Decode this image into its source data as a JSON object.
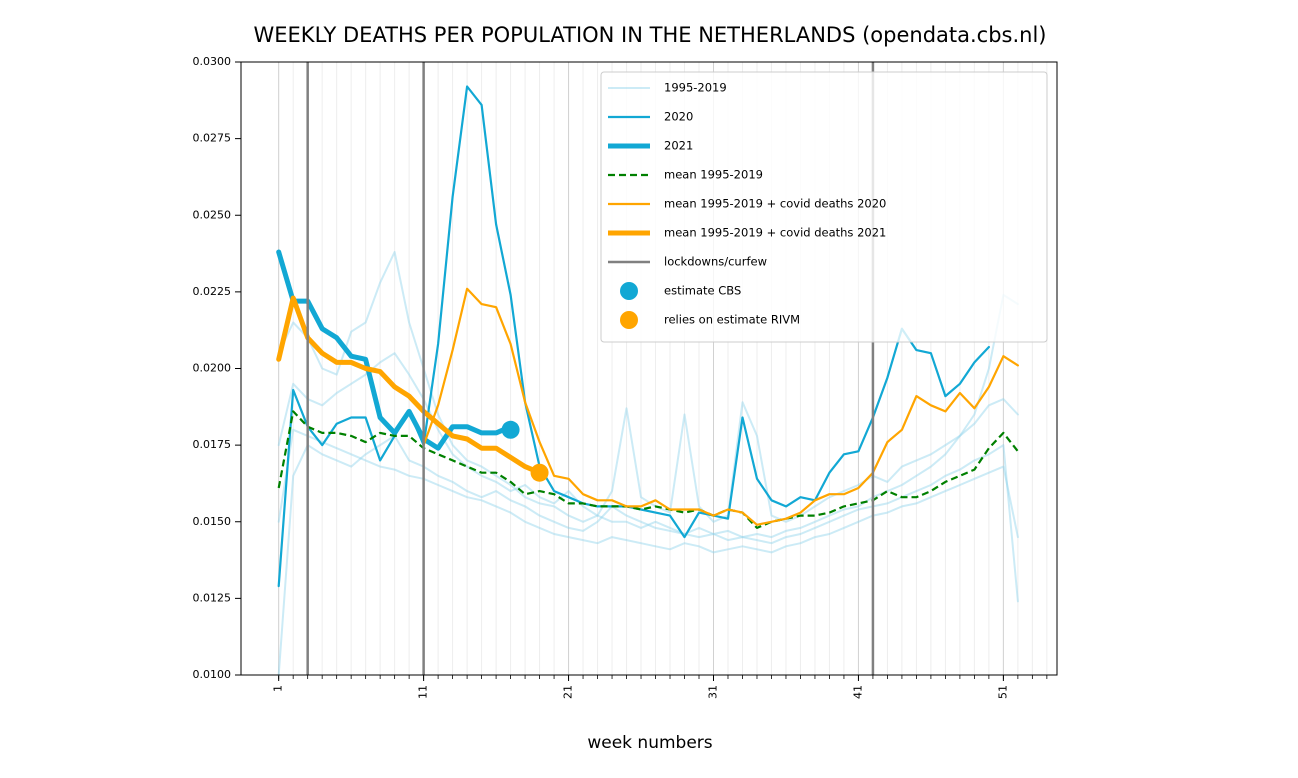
{
  "chart_data": {
    "type": "line",
    "title": "WEEKLY DEATHS PER POPULATION IN THE NETHERLANDS (opendata.cbs.nl)",
    "x_label": "week numbers",
    "x": [
      1,
      2,
      3,
      4,
      5,
      6,
      7,
      8,
      9,
      10,
      11,
      12,
      13,
      14,
      15,
      16,
      17,
      18,
      19,
      20,
      21,
      22,
      23,
      24,
      25,
      26,
      27,
      28,
      29,
      30,
      31,
      32,
      33,
      34,
      35,
      36,
      37,
      38,
      39,
      40,
      41,
      42,
      43,
      44,
      45,
      46,
      47,
      48,
      49,
      50,
      51,
      52
    ],
    "xlim": [
      -1.6,
      54.7
    ],
    "xticks": [
      1,
      11,
      21,
      31,
      41,
      51
    ],
    "xminorticks": [
      1,
      2,
      3,
      4,
      5,
      6,
      7,
      8,
      9,
      10,
      11,
      12,
      13,
      14,
      15,
      16,
      17,
      18,
      19,
      20,
      21,
      22,
      23,
      24,
      25,
      26,
      27,
      28,
      29,
      30,
      31,
      32,
      33,
      34,
      35,
      36,
      37,
      38,
      39,
      40,
      41,
      42,
      43,
      44,
      45,
      46,
      47,
      48,
      49,
      50,
      51,
      52,
      53,
      54
    ],
    "ylim": [
      0.01,
      0.03
    ],
    "yticks": [
      {
        "value": 0.01,
        "label": "0.0100"
      },
      {
        "value": 0.0125,
        "label": "0.0125"
      },
      {
        "value": 0.015,
        "label": "0.0150"
      },
      {
        "value": 0.0175,
        "label": "0.0175"
      },
      {
        "value": 0.02,
        "label": "0.0200"
      },
      {
        "value": 0.0225,
        "label": "0.0225"
      },
      {
        "value": 0.025,
        "label": "0.0250"
      },
      {
        "value": 0.0275,
        "label": "0.0275"
      },
      {
        "value": 0.03,
        "label": "0.0300"
      }
    ],
    "grid": true,
    "legend": "upper right",
    "series": [
      {
        "name": "1995-2019",
        "color": "#8fd3ea",
        "width": 2,
        "opacity": 0.45,
        "lines": [
          [
            0.0205,
            0.0215,
            0.021,
            0.02,
            0.0198,
            0.0212,
            0.0215,
            0.0228,
            0.0238,
            0.0215,
            0.02,
            0.0185,
            0.0175,
            0.017,
            0.0168,
            0.0165,
            0.0162,
            0.0158,
            0.0156,
            0.0155,
            0.0152,
            0.015,
            0.0152,
            0.015,
            0.015,
            0.0148,
            0.015,
            0.0148,
            0.0146,
            0.0148,
            0.0146,
            0.0147,
            0.0145,
            0.0146,
            0.0145,
            0.0147,
            0.0148,
            0.015,
            0.0152,
            0.0154,
            0.0155,
            0.0158,
            0.016,
            0.0162,
            0.0165,
            0.0168,
            0.0172,
            0.0178,
            0.0185,
            0.02,
            0.0224,
            0.0221
          ],
          [
            0.01,
            0.0165,
            0.0175,
            0.0172,
            0.017,
            0.0168,
            0.0172,
            0.0175,
            0.0178,
            0.017,
            0.0168,
            0.0165,
            0.0163,
            0.016,
            0.0158,
            0.016,
            0.0157,
            0.0155,
            0.0152,
            0.015,
            0.0148,
            0.0147,
            0.015,
            0.0155,
            0.0152,
            0.015,
            0.0148,
            0.0147,
            0.0146,
            0.0145,
            0.0146,
            0.0144,
            0.0145,
            0.0144,
            0.0143,
            0.0145,
            0.0146,
            0.0148,
            0.015,
            0.0152,
            0.0154,
            0.0155,
            0.0156,
            0.0158,
            0.016,
            0.0162,
            0.0165,
            0.0167,
            0.017,
            0.0172,
            0.0175,
            0.0124
          ],
          [
            0.0175,
            0.0195,
            0.019,
            0.0188,
            0.0192,
            0.0195,
            0.0198,
            0.0202,
            0.0205,
            0.0198,
            0.019,
            0.018,
            0.0172,
            0.0168,
            0.0165,
            0.0163,
            0.016,
            0.0162,
            0.0158,
            0.0156,
            0.016,
            0.0155,
            0.0152,
            0.016,
            0.0187,
            0.0158,
            0.0155,
            0.0153,
            0.0185,
            0.0155,
            0.015,
            0.0152,
            0.0189,
            0.0178,
            0.0152,
            0.015,
            0.0152,
            0.0155,
            0.0158,
            0.016,
            0.0162,
            0.0165,
            0.0163,
            0.0168,
            0.017,
            0.0172,
            0.0175,
            0.0178,
            0.0182,
            0.0188,
            0.019,
            0.0185
          ],
          [
            0.015,
            0.018,
            0.0178,
            0.0176,
            0.0174,
            0.0172,
            0.017,
            0.0168,
            0.0167,
            0.0165,
            0.0164,
            0.0162,
            0.016,
            0.0158,
            0.0157,
            0.0155,
            0.0153,
            0.015,
            0.0148,
            0.0146,
            0.0145,
            0.0144,
            0.0143,
            0.0145,
            0.0144,
            0.0143,
            0.0142,
            0.0141,
            0.0143,
            0.0142,
            0.014,
            0.0141,
            0.0142,
            0.0141,
            0.014,
            0.0142,
            0.0143,
            0.0145,
            0.0146,
            0.0148,
            0.015,
            0.0152,
            0.0153,
            0.0155,
            0.0156,
            0.0158,
            0.016,
            0.0162,
            0.0164,
            0.0166,
            0.0168,
            0.0145
          ]
        ]
      },
      {
        "name": "2020",
        "color": "#12a8d4",
        "width": 2.2,
        "values": [
          0.0129,
          0.0193,
          0.0181,
          0.0175,
          0.0182,
          0.0184,
          0.0184,
          0.017,
          0.0178,
          0.0186,
          0.0175,
          0.0208,
          0.0256,
          0.0292,
          0.0286,
          0.0247,
          0.0224,
          0.0189,
          0.0168,
          0.016,
          0.0158,
          0.0156,
          0.0155,
          0.0155,
          0.0155,
          0.0154,
          0.0153,
          0.0152,
          0.0145,
          0.0153,
          0.0152,
          0.0151,
          0.0184,
          0.0164,
          0.0157,
          0.0155,
          0.0158,
          0.0157,
          0.0166,
          0.0172,
          0.0173,
          0.0184,
          0.0197,
          0.0213,
          0.0206,
          0.0205,
          0.0191,
          0.0195,
          0.0202,
          0.0207,
          null,
          null
        ]
      },
      {
        "name": "2021",
        "color": "#12a8d4",
        "width": 5,
        "values": [
          0.0238,
          0.0222,
          0.0222,
          0.0213,
          0.021,
          0.0204,
          0.0203,
          0.0184,
          0.0179,
          0.0186,
          0.0177,
          0.0174,
          0.0181,
          0.0181,
          0.0179,
          0.0179,
          0.0181,
          null,
          null,
          null,
          null,
          null,
          null,
          null,
          null,
          null,
          null,
          null,
          null,
          null,
          null,
          null,
          null,
          null,
          null,
          null,
          null,
          null,
          null,
          null,
          null,
          null,
          null,
          null,
          null,
          null,
          null,
          null,
          null,
          null,
          null,
          null
        ]
      },
      {
        "name": "mean 1995-2019",
        "color": "#008000",
        "width": 2.2,
        "dash": "7 4",
        "values": [
          0.0161,
          0.0186,
          0.0181,
          0.0179,
          0.0179,
          0.0178,
          0.0176,
          0.0179,
          0.0178,
          0.0178,
          0.0174,
          0.0172,
          0.017,
          0.0168,
          0.0166,
          0.0166,
          0.0163,
          0.0159,
          0.016,
          0.0159,
          0.0156,
          0.0156,
          0.0155,
          0.0155,
          0.0155,
          0.0154,
          0.0155,
          0.0154,
          0.0153,
          0.0154,
          0.0152,
          0.0154,
          0.0153,
          0.0148,
          0.015,
          0.0151,
          0.0152,
          0.0152,
          0.0153,
          0.0155,
          0.0156,
          0.0157,
          0.016,
          0.0158,
          0.0158,
          0.016,
          0.0163,
          0.0165,
          0.0167,
          0.0174,
          0.0179,
          0.0173
        ]
      },
      {
        "name": "mean 1995-2019 + covid deaths 2020",
        "color": "#ffa500",
        "width": 2.2,
        "values": [
          null,
          null,
          null,
          null,
          null,
          null,
          null,
          null,
          null,
          null,
          0.0175,
          0.0188,
          0.0206,
          0.0226,
          0.0221,
          0.022,
          0.0208,
          0.0189,
          0.0176,
          0.0165,
          0.0164,
          0.0159,
          0.0157,
          0.0157,
          0.0155,
          0.0155,
          0.0157,
          0.0154,
          0.0154,
          0.0154,
          0.0152,
          0.0154,
          0.0153,
          0.0149,
          0.015,
          0.0151,
          0.0153,
          0.0157,
          0.0159,
          0.0159,
          0.0161,
          0.0166,
          0.0176,
          0.018,
          0.0191,
          0.0188,
          0.0186,
          0.0192,
          0.0187,
          0.0194,
          0.0204,
          0.0201
        ]
      },
      {
        "name": "mean 1995-2019 + covid deaths 2021",
        "color": "#ffa500",
        "width": 5,
        "values": [
          0.0203,
          0.0223,
          0.021,
          0.0205,
          0.0202,
          0.0202,
          0.02,
          0.0199,
          0.0194,
          0.0191,
          0.0186,
          0.0182,
          0.0178,
          0.0177,
          0.0174,
          0.0174,
          0.0171,
          0.0168,
          0.0166,
          null,
          null,
          null,
          null,
          null,
          null,
          null,
          null,
          null,
          null,
          null,
          null,
          null,
          null,
          null,
          null,
          null,
          null,
          null,
          null,
          null,
          null,
          null,
          null,
          null,
          null,
          null,
          null,
          null,
          null,
          null,
          null,
          null
        ]
      }
    ],
    "lockdowns": {
      "name": "lockdowns/curfew",
      "color": "#808080",
      "x": [
        3,
        11,
        42
      ]
    },
    "points": [
      {
        "name": "estimate CBS",
        "color": "#12a8d4",
        "x": 17,
        "y": 0.018
      },
      {
        "name": "relies on estimate RIVM",
        "color": "#ffa500",
        "x": 19,
        "y": 0.0166
      }
    ]
  }
}
